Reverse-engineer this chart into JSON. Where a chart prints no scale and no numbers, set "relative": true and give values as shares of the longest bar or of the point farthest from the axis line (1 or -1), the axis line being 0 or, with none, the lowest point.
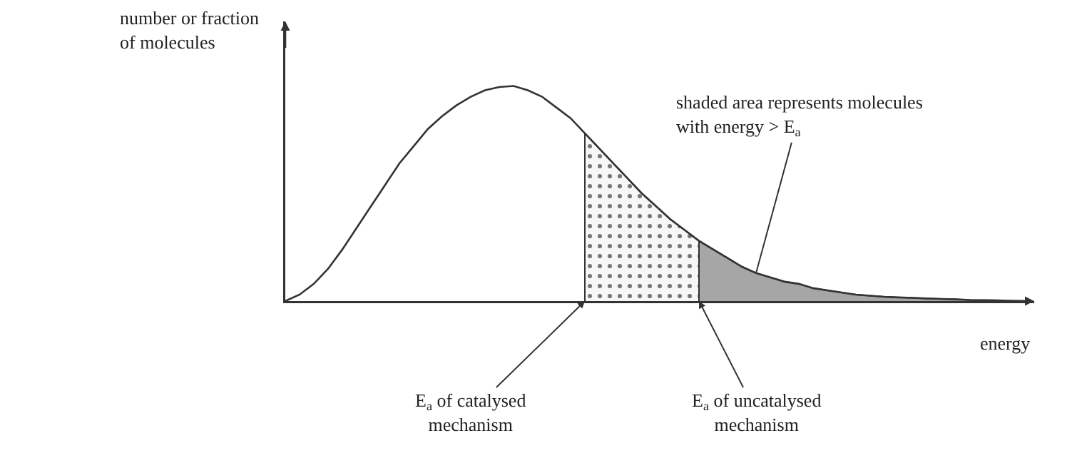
{
  "chart_data": {
    "type": "line",
    "relative": true,
    "marker": "none",
    "line_style": "solid",
    "ylabel": "number or fraction\nof molecules",
    "xlabel": "energy",
    "categories": [
      null,
      null,
      null,
      null,
      null,
      null,
      null,
      null,
      null,
      null,
      null,
      null,
      null,
      null,
      null,
      null,
      null,
      null,
      null,
      null,
      null,
      null,
      null,
      null,
      null,
      null,
      null,
      null,
      null,
      null,
      null,
      null,
      null,
      null,
      null,
      null,
      null,
      null,
      null,
      null,
      null,
      null,
      null,
      null,
      null,
      null,
      null,
      null,
      null,
      null,
      null,
      null,
      null
    ],
    "series": [
      {
        "color": "#333333",
        "values": [
          0,
          0.03,
          0.08,
          0.15,
          0.24,
          0.34,
          0.44,
          0.54,
          0.64,
          0.72,
          0.8,
          0.86,
          0.91,
          0.95,
          0.98,
          0.995,
          1,
          0.98,
          0.95,
          0.9,
          0.85,
          0.78,
          0.71,
          0.64,
          0.57,
          0.5,
          0.44,
          0.38,
          0.33,
          0.28,
          0.24,
          0.2,
          0.16,
          0.13,
          0.11,
          0.09,
          0.08,
          0.06,
          0.05,
          0.04,
          0.03,
          0.025,
          0.02,
          0.017,
          0.015,
          0.012,
          0.01,
          0.008,
          0.005,
          0.004,
          0.003,
          0.001,
          0
        ]
      },
      {
        "type": "area",
        "color": "#f7f7f7",
        "values": [
          null,
          null,
          null,
          null,
          null,
          null,
          null,
          null,
          null,
          null,
          null,
          null,
          null,
          null,
          null,
          null,
          null,
          null,
          null,
          null,
          null,
          0.78,
          0.71,
          0.64,
          0.57,
          0.5,
          0.44,
          0.38,
          0.33,
          0.28,
          null,
          null,
          null,
          null,
          null,
          null,
          null,
          null,
          null,
          null,
          null,
          null,
          null,
          null,
          null,
          null,
          null,
          null,
          null,
          null,
          null,
          null,
          null
        ]
      },
      {
        "type": "area",
        "color": "#a6a6a6",
        "values": [
          null,
          null,
          null,
          null,
          null,
          null,
          null,
          null,
          null,
          null,
          null,
          null,
          null,
          null,
          null,
          null,
          null,
          null,
          null,
          null,
          null,
          null,
          null,
          null,
          null,
          null,
          null,
          null,
          null,
          0.28,
          0.24,
          0.2,
          0.16,
          0.13,
          0.11,
          0.09,
          0.08,
          0.06,
          0.05,
          0.04,
          0.03,
          0.025,
          0.02,
          0.017,
          0.015,
          0.012,
          0.01,
          0.008,
          0.005,
          0.004,
          0.003,
          0.001,
          0
        ]
      }
    ],
    "annotations": [
      "shaded area represents molecules\nwith energy > E$_{a}$",
      "E$_{a}$ of catalysed\nmechanism",
      "E$_{a}$ of uncatalysed\nmechanism"
    ]
  }
}
